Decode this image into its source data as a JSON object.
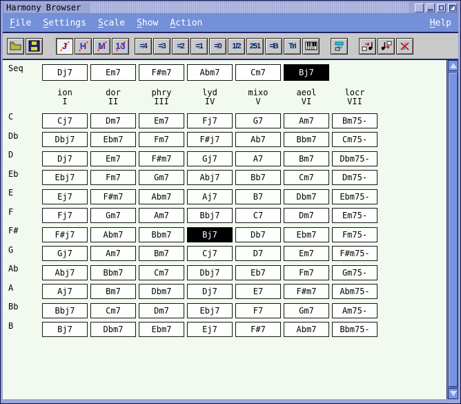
{
  "window": {
    "title": "Harmony Browser"
  },
  "menubar": {
    "items": [
      {
        "label": "File",
        "mnemonic": "F"
      },
      {
        "label": "Settings",
        "mnemonic": "S"
      },
      {
        "label": "Scale",
        "mnemonic": "S"
      },
      {
        "label": "Show",
        "mnemonic": "S"
      },
      {
        "label": "Action",
        "mnemonic": "A"
      }
    ],
    "right_item": {
      "label": "Help",
      "mnemonic": "H"
    }
  },
  "toolbar": {
    "file_icons": [
      "open-folder-icon",
      "save-floppy-icon"
    ],
    "chord_type_buttons": [
      {
        "label": "J",
        "pressed": true
      },
      {
        "label": "H",
        "pressed": false
      },
      {
        "label": "M",
        "pressed": false
      },
      {
        "label": "13",
        "pressed": false
      }
    ],
    "scale_buttons": [
      "=4",
      "=3",
      "=2",
      "=1",
      "=0",
      "1/2",
      "251",
      "=B",
      "Tri"
    ],
    "piano_icon": "piano-keyboard-icon",
    "transfer_icon": "send-to-sequence-icon",
    "edit_icons": [
      "insert-note-icon",
      "extract-note-icon",
      "delete-note-icon"
    ]
  },
  "sequence": {
    "label": "Seq",
    "chords": [
      {
        "label": "Dj7",
        "selected": false
      },
      {
        "label": "Em7",
        "selected": false
      },
      {
        "label": "F#m7",
        "selected": false
      },
      {
        "label": "Abm7",
        "selected": false
      },
      {
        "label": "Cm7",
        "selected": false
      },
      {
        "label": "Bj7",
        "selected": true
      }
    ]
  },
  "mode_headers": [
    {
      "mode": "ion",
      "numeral": "I"
    },
    {
      "mode": "dor",
      "numeral": "II"
    },
    {
      "mode": "phry",
      "numeral": "III"
    },
    {
      "mode": "lyd",
      "numeral": "IV"
    },
    {
      "mode": "mixo",
      "numeral": "V"
    },
    {
      "mode": "aeol",
      "numeral": "VI"
    },
    {
      "mode": "locr",
      "numeral": "VII"
    }
  ],
  "chord_grid": {
    "rows": [
      {
        "key": "C",
        "selected": -1,
        "chords": [
          "Cj7",
          "Dm7",
          "Em7",
          "Fj7",
          "G7",
          "Am7",
          "Bm75-"
        ]
      },
      {
        "key": "Db",
        "selected": -1,
        "chords": [
          "Dbj7",
          "Ebm7",
          "Fm7",
          "F#j7",
          "Ab7",
          "Bbm7",
          "Cm75-"
        ]
      },
      {
        "key": "D",
        "selected": -1,
        "chords": [
          "Dj7",
          "Em7",
          "F#m7",
          "Gj7",
          "A7",
          "Bm7",
          "Dbm75-"
        ]
      },
      {
        "key": "Eb",
        "selected": -1,
        "chords": [
          "Ebj7",
          "Fm7",
          "Gm7",
          "Abj7",
          "Bb7",
          "Cm7",
          "Dm75-"
        ]
      },
      {
        "key": "E",
        "selected": -1,
        "chords": [
          "Ej7",
          "F#m7",
          "Abm7",
          "Aj7",
          "B7",
          "Dbm7",
          "Ebm75-"
        ]
      },
      {
        "key": "F",
        "selected": -1,
        "chords": [
          "Fj7",
          "Gm7",
          "Am7",
          "Bbj7",
          "C7",
          "Dm7",
          "Em75-"
        ]
      },
      {
        "key": "F#",
        "selected": 3,
        "chords": [
          "F#j7",
          "Abm7",
          "Bbm7",
          "Bj7",
          "Db7",
          "Ebm7",
          "Fm75-"
        ]
      },
      {
        "key": "G",
        "selected": -1,
        "chords": [
          "Gj7",
          "Am7",
          "Bm7",
          "Cj7",
          "D7",
          "Em7",
          "F#m75-"
        ]
      },
      {
        "key": "Ab",
        "selected": -1,
        "chords": [
          "Abj7",
          "Bbm7",
          "Cm7",
          "Dbj7",
          "Eb7",
          "Fm7",
          "Gm75-"
        ]
      },
      {
        "key": "A",
        "selected": -1,
        "chords": [
          "Aj7",
          "Bm7",
          "Dbm7",
          "Dj7",
          "E7",
          "F#m7",
          "Abm75-"
        ]
      },
      {
        "key": "Bb",
        "selected": -1,
        "chords": [
          "Bbj7",
          "Cm7",
          "Dm7",
          "Ebj7",
          "F7",
          "Gm7",
          "Am75-"
        ]
      },
      {
        "key": "B",
        "selected": -1,
        "chords": [
          "Bj7",
          "Dbm7",
          "Ebm7",
          "Ej7",
          "F#7",
          "Abm7",
          "Bbm75-"
        ]
      }
    ]
  },
  "colors": {
    "titlebar": "#9ba7d7",
    "menubar": "#7390d8",
    "toolbar": "#c9c9c9",
    "content": "#f2faf0",
    "selected_bg": "#000000",
    "selected_fg": "#ffffff",
    "accent_cyan": "#1bcde6",
    "accent_red": "#d03030",
    "accent_blue": "#2236cc"
  }
}
